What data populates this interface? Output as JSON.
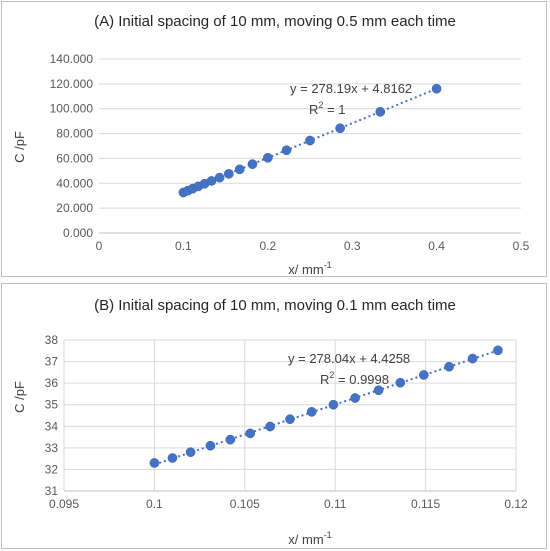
{
  "chart_data": [
    {
      "type": "scatter",
      "title": "(A) Initial spacing of 10 mm, moving 0.5 mm each time",
      "xlabel": "x/ mm",
      "xlabel_sup": "-1",
      "ylabel": "C /pF",
      "xlim": [
        0,
        0.5
      ],
      "ylim": [
        0,
        140
      ],
      "x_ticks": [
        "0",
        "0.1",
        "0.2",
        "0.3",
        "0.4",
        "0.5"
      ],
      "y_ticks": [
        "0.000",
        "20.000",
        "40.000",
        "60.000",
        "80.000",
        "100.000",
        "120.000",
        "140.000"
      ],
      "x_tick_values": [
        0,
        0.1,
        0.2,
        0.3,
        0.4,
        0.5
      ],
      "y_tick_values": [
        0,
        20,
        40,
        60,
        80,
        100,
        120,
        140
      ],
      "grid": "horizontal",
      "x": [
        0.1,
        0.1053,
        0.1111,
        0.1176,
        0.125,
        0.1333,
        0.1429,
        0.1538,
        0.1667,
        0.1818,
        0.2,
        0.2222,
        0.25,
        0.2857,
        0.3333,
        0.4
      ],
      "y": [
        32.6,
        34.1,
        35.7,
        37.5,
        39.6,
        41.9,
        44.6,
        47.6,
        51.2,
        55.4,
        60.5,
        66.6,
        74.4,
        84.3,
        97.5,
        116.1
      ],
      "trendline": {
        "slope": 278.19,
        "intercept": 4.8162,
        "x_range": [
          0.1,
          0.4
        ]
      },
      "equation": "y = 278.19x + 4.8162",
      "r2_label": "R",
      "r2_sup": "2",
      "r2_value": " = 1",
      "point_color": "#4472c4"
    },
    {
      "type": "scatter",
      "title": "(B) Initial spacing of 10 mm, moving 0.1 mm each time",
      "xlabel": "x/ mm",
      "xlabel_sup": "-1",
      "ylabel": "C /pF",
      "xlim": [
        0.095,
        0.12
      ],
      "ylim": [
        31,
        38
      ],
      "x_ticks": [
        "0.095",
        "0.1",
        "0.105",
        "0.11",
        "0.115",
        "0.12"
      ],
      "y_ticks": [
        "31",
        "32",
        "33",
        "34",
        "35",
        "36",
        "37",
        "38"
      ],
      "x_tick_values": [
        0.095,
        0.1,
        0.105,
        0.11,
        0.115,
        0.12
      ],
      "y_tick_values": [
        31,
        32,
        33,
        34,
        35,
        36,
        37,
        38
      ],
      "grid": "both",
      "x": [
        0.1,
        0.101,
        0.102,
        0.1031,
        0.1042,
        0.1053,
        0.1064,
        0.1075,
        0.1087,
        0.1099,
        0.1111,
        0.1124,
        0.1136,
        0.1149,
        0.1163,
        0.1176,
        0.119
      ],
      "y": [
        32.3,
        32.53,
        32.8,
        33.1,
        33.38,
        33.67,
        33.99,
        34.33,
        34.67,
        35.0,
        35.31,
        35.67,
        36.02,
        36.38,
        36.76,
        37.14,
        37.52
      ],
      "trendline": {
        "slope": 278.04,
        "intercept": 4.4258,
        "x_range": [
          0.1,
          0.119
        ]
      },
      "equation": "y = 278.04x + 4.4258",
      "r2_label": "R",
      "r2_sup": "2",
      "r2_value": " = 0.9998",
      "point_color": "#4472c4"
    }
  ]
}
